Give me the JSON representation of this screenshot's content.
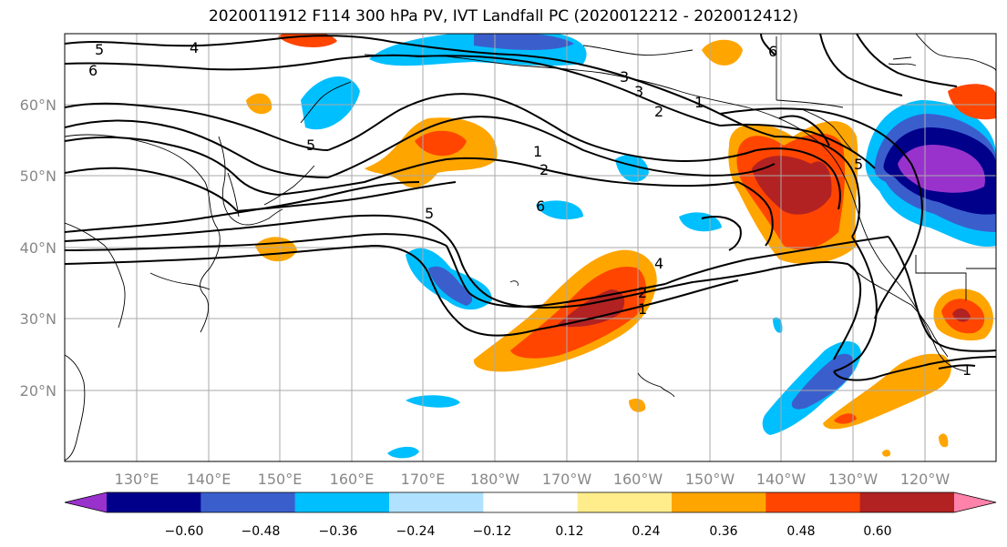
{
  "title": "2020011912 F114 300 hPa PV, IVT Landfall PC (2020012212 - 2020012412)",
  "lat_labels": [
    "20°N",
    "30°N",
    "40°N",
    "50°N",
    "60°N"
  ],
  "lon_labels": [
    "130°E",
    "140°E",
    "150°E",
    "160°E",
    "170°E",
    "180°W",
    "170°W",
    "160°W",
    "150°W",
    "140°W",
    "130°W",
    "120°W"
  ],
  "colorbar": {
    "colors": [
      "#9932CC",
      "#00008B",
      "#3A5FCD",
      "#00BFFF",
      "#B0E2FF",
      "#FFFFFF",
      "#FFEC8B",
      "#FFA500",
      "#FF4500",
      "#B22222",
      "#FF82AB"
    ],
    "tick_labels": [
      "−0.60",
      "−0.48",
      "−0.36",
      "−0.24",
      "−0.12",
      "0.12",
      "0.24",
      "0.36",
      "0.48",
      "0.60"
    ]
  },
  "contour_labels": [
    "5",
    "6",
    "4",
    "3",
    "2",
    "1",
    "1",
    "2",
    "6",
    "5",
    "5",
    "3",
    "4",
    "2",
    "1",
    "5",
    "1",
    "6"
  ]
}
